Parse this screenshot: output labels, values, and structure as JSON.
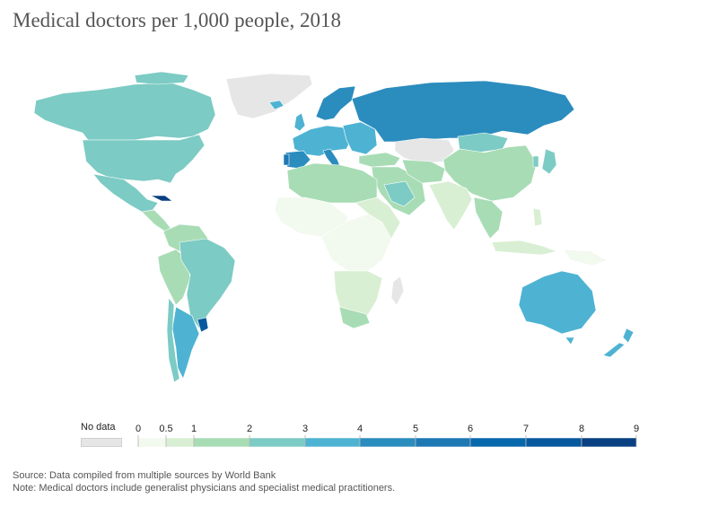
{
  "title": "Medical doctors per 1,000 people, 2018",
  "legend": {
    "no_data_label": "No data",
    "no_data_color": "#e6e6e6",
    "ticks": [
      "0",
      "0.5",
      "1",
      "2",
      "3",
      "4",
      "5",
      "6",
      "7",
      "8",
      "9"
    ],
    "bins": [
      {
        "from": 0,
        "to": 0.5,
        "color": "#f2f9ee"
      },
      {
        "from": 0.5,
        "to": 1,
        "color": "#d9efd3"
      },
      {
        "from": 1,
        "to": 2,
        "color": "#a8dcb5"
      },
      {
        "from": 2,
        "to": 3,
        "color": "#7ccbc4"
      },
      {
        "from": 3,
        "to": 4,
        "color": "#4eb3d3"
      },
      {
        "from": 4,
        "to": 5,
        "color": "#2b8cbe"
      },
      {
        "from": 5,
        "to": 6,
        "color": "#1d78b4"
      },
      {
        "from": 6,
        "to": 7,
        "color": "#0868ac"
      },
      {
        "from": 7,
        "to": 8,
        "color": "#08589e"
      },
      {
        "from": 8,
        "to": 9,
        "color": "#084081"
      }
    ]
  },
  "footer": {
    "source": "Source: Data compiled from multiple sources by World Bank",
    "note": "Note: Medical doctors include generalist physicians and specialist medical practitioners."
  }
}
